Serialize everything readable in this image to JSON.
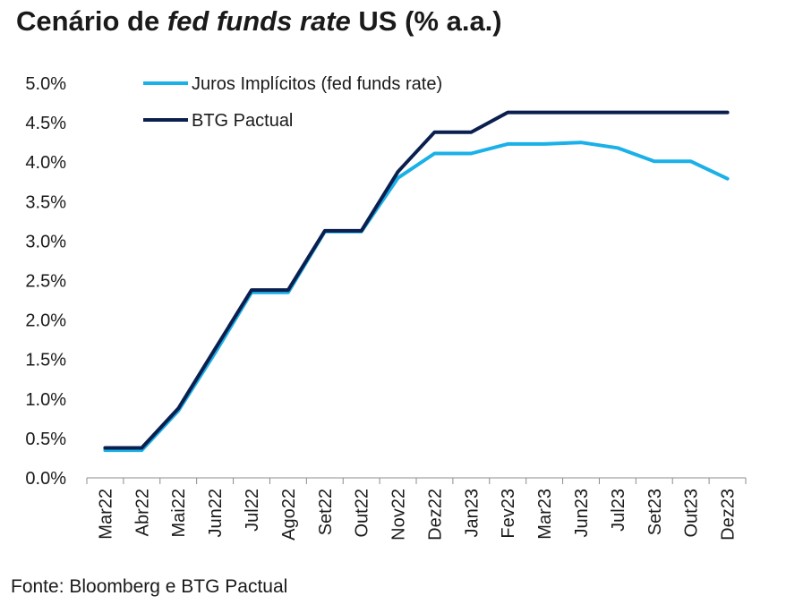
{
  "title": {
    "part1": "Cenário de ",
    "part2": "fed funds rate",
    "part3": " US (% a.a.)"
  },
  "source": "Fonte: Bloomberg e BTG Pactual",
  "chart_data": {
    "type": "line",
    "title": "Cenário de fed funds rate US (% a.a.)",
    "xlabel": "",
    "ylabel": "",
    "categories": [
      "Mar22",
      "Abr22",
      "Mai22",
      "Jun22",
      "Jul22",
      "Ago22",
      "Set22",
      "Out22",
      "Nov22",
      "Dez22",
      "Jan23",
      "Fev23",
      "Mar23",
      "Jun23",
      "Jul23",
      "Set23",
      "Out23",
      "Dez23"
    ],
    "ylim": [
      0,
      5.0
    ],
    "yticks": [
      "0.0%",
      "0.5%",
      "1.0%",
      "1.5%",
      "2.0%",
      "2.5%",
      "3.0%",
      "3.5%",
      "4.0%",
      "4.5%",
      "5.0%"
    ],
    "grid": false,
    "legend": "top-left",
    "series": [
      {
        "name": "Juros Implícitos (fed funds rate)",
        "color": "#1ab0e8",
        "values": [
          0.35,
          0.35,
          0.85,
          1.58,
          2.35,
          2.35,
          3.12,
          3.12,
          3.8,
          4.11,
          4.11,
          4.23,
          4.23,
          4.25,
          4.18,
          4.01,
          4.01,
          3.79
        ]
      },
      {
        "name": "BTG Pactual",
        "color": "#0b1f4f",
        "values": [
          0.38,
          0.38,
          0.88,
          1.63,
          2.38,
          2.38,
          3.13,
          3.13,
          3.88,
          4.38,
          4.38,
          4.63,
          4.63,
          4.63,
          4.63,
          4.63,
          4.63,
          4.63
        ]
      }
    ]
  }
}
